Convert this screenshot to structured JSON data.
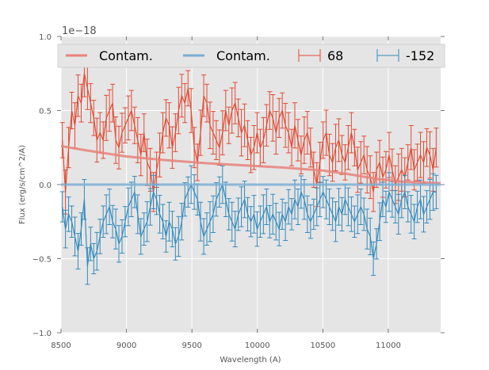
{
  "chart_data": {
    "type": "line",
    "title": "",
    "xlabel": "Wavelength (A)",
    "ylabel": "Flux (erg/s/cm^2/A)",
    "y_offset_label": "1e−18",
    "xlim": [
      8500,
      11400
    ],
    "ylim": [
      -1.0,
      1.0
    ],
    "xticks": [
      8500,
      9000,
      9500,
      10000,
      10500,
      11000
    ],
    "xtick_labels": [
      "8500",
      "9000",
      "9500",
      "10000",
      "10500",
      "11000"
    ],
    "yticks": [
      -1.0,
      -0.5,
      0.0,
      0.5,
      1.0
    ],
    "ytick_labels": [
      "−1.0",
      "−0.5",
      "0.0",
      "0.5",
      "1.0"
    ],
    "grid": true,
    "legend_placement": "top",
    "legend": [
      {
        "label": "Contam.",
        "kind": "line",
        "color": "#e8837a"
      },
      {
        "label": "Contam.",
        "kind": "line",
        "color": "#7aadd4"
      },
      {
        "label": "68",
        "kind": "errorbar",
        "color": "#e24a33"
      },
      {
        "label": "-152",
        "kind": "errorbar",
        "color": "#348abd"
      }
    ],
    "contam_series": [
      {
        "name": "Contam. (68)",
        "color": "#e8837a",
        "x": [
          8500,
          8700,
          9000,
          9300,
          9600,
          9900,
          10200,
          10500,
          10700,
          10900,
          11100,
          11400
        ],
        "values": [
          0.26,
          0.23,
          0.19,
          0.165,
          0.145,
          0.13,
          0.115,
          0.095,
          0.07,
          0.04,
          0.02,
          0.01
        ]
      },
      {
        "name": "Contam. (-152)",
        "color": "#7aadd4",
        "x": [
          8500,
          11400
        ],
        "values": [
          0.0,
          0.0
        ]
      }
    ],
    "series": [
      {
        "name": "68",
        "color": "#e24a33",
        "x_start": 8510,
        "x_step": 24,
        "values": [
          0.3,
          -0.05,
          0.25,
          0.5,
          0.4,
          0.6,
          0.55,
          0.75,
          0.65,
          0.55,
          0.45,
          0.3,
          0.35,
          0.3,
          0.45,
          0.5,
          0.55,
          0.3,
          0.25,
          0.35,
          0.4,
          0.45,
          0.5,
          0.4,
          0.3,
          0.2,
          0.35,
          0.15,
          0.1,
          -0.05,
          0.1,
          0.2,
          0.35,
          0.45,
          0.4,
          0.25,
          0.35,
          0.5,
          0.6,
          0.55,
          0.65,
          0.5,
          0.25,
          0.15,
          0.35,
          0.6,
          0.55,
          0.4,
          0.35,
          0.3,
          0.25,
          0.35,
          0.5,
          0.4,
          0.5,
          0.55,
          0.45,
          0.35,
          0.4,
          0.3,
          0.2,
          0.25,
          0.35,
          0.25,
          0.3,
          0.4,
          0.5,
          0.45,
          0.35,
          0.45,
          0.5,
          0.4,
          0.35,
          0.25,
          0.4,
          0.3,
          0.2,
          0.3,
          0.35,
          0.25,
          0.1,
          0.0,
          0.15,
          0.3,
          0.35,
          0.2,
          0.15,
          0.25,
          0.3,
          0.2,
          0.15,
          0.25,
          0.35,
          0.25,
          0.1,
          0.15,
          0.2,
          0.1,
          0.05,
          -0.05,
          0.1,
          0.15,
          0.05,
          0.1,
          0.2,
          0.1,
          0.0,
          0.05,
          0.1,
          0.05,
          0.15,
          0.25,
          0.1,
          0.15,
          0.2,
          0.15,
          0.25,
          0.2,
          0.1,
          0.25
        ],
        "errors": 0.14
      },
      {
        "name": "-152",
        "color": "#348abd",
        "x_start": 8510,
        "x_step": 24,
        "values": [
          -0.15,
          -0.3,
          -0.2,
          -0.25,
          -0.35,
          -0.45,
          -0.3,
          -0.1,
          -0.55,
          -0.4,
          -0.5,
          -0.45,
          -0.35,
          -0.25,
          -0.2,
          -0.15,
          -0.25,
          -0.3,
          -0.4,
          -0.35,
          -0.25,
          -0.15,
          -0.1,
          -0.05,
          -0.2,
          -0.35,
          -0.3,
          -0.25,
          -0.15,
          -0.05,
          -0.1,
          -0.2,
          -0.25,
          -0.35,
          -0.25,
          -0.3,
          -0.4,
          -0.35,
          -0.25,
          -0.1,
          -0.05,
          -0.0,
          -0.05,
          -0.1,
          -0.25,
          -0.35,
          -0.3,
          -0.25,
          -0.2,
          -0.1,
          -0.05,
          -0.0,
          -0.1,
          -0.2,
          -0.25,
          -0.3,
          -0.2,
          -0.15,
          -0.1,
          -0.2,
          -0.25,
          -0.2,
          -0.3,
          -0.25,
          -0.2,
          -0.15,
          -0.25,
          -0.2,
          -0.25,
          -0.3,
          -0.2,
          -0.25,
          -0.15,
          -0.2,
          -0.1,
          -0.15,
          -0.05,
          -0.1,
          -0.2,
          -0.25,
          -0.2,
          -0.15,
          -0.1,
          -0.05,
          -0.1,
          -0.15,
          -0.2,
          -0.25,
          -0.15,
          -0.2,
          -0.1,
          -0.15,
          -0.2,
          -0.25,
          -0.2,
          -0.15,
          -0.2,
          -0.3,
          -0.35,
          -0.5,
          -0.4,
          -0.25,
          -0.1,
          -0.15,
          -0.05,
          -0.1,
          -0.15,
          -0.2,
          -0.1,
          -0.05,
          -0.15,
          -0.2,
          -0.25,
          -0.15,
          -0.1,
          -0.2,
          -0.15,
          -0.1,
          -0.05,
          -0.05
        ],
        "errors": 0.12
      }
    ]
  }
}
